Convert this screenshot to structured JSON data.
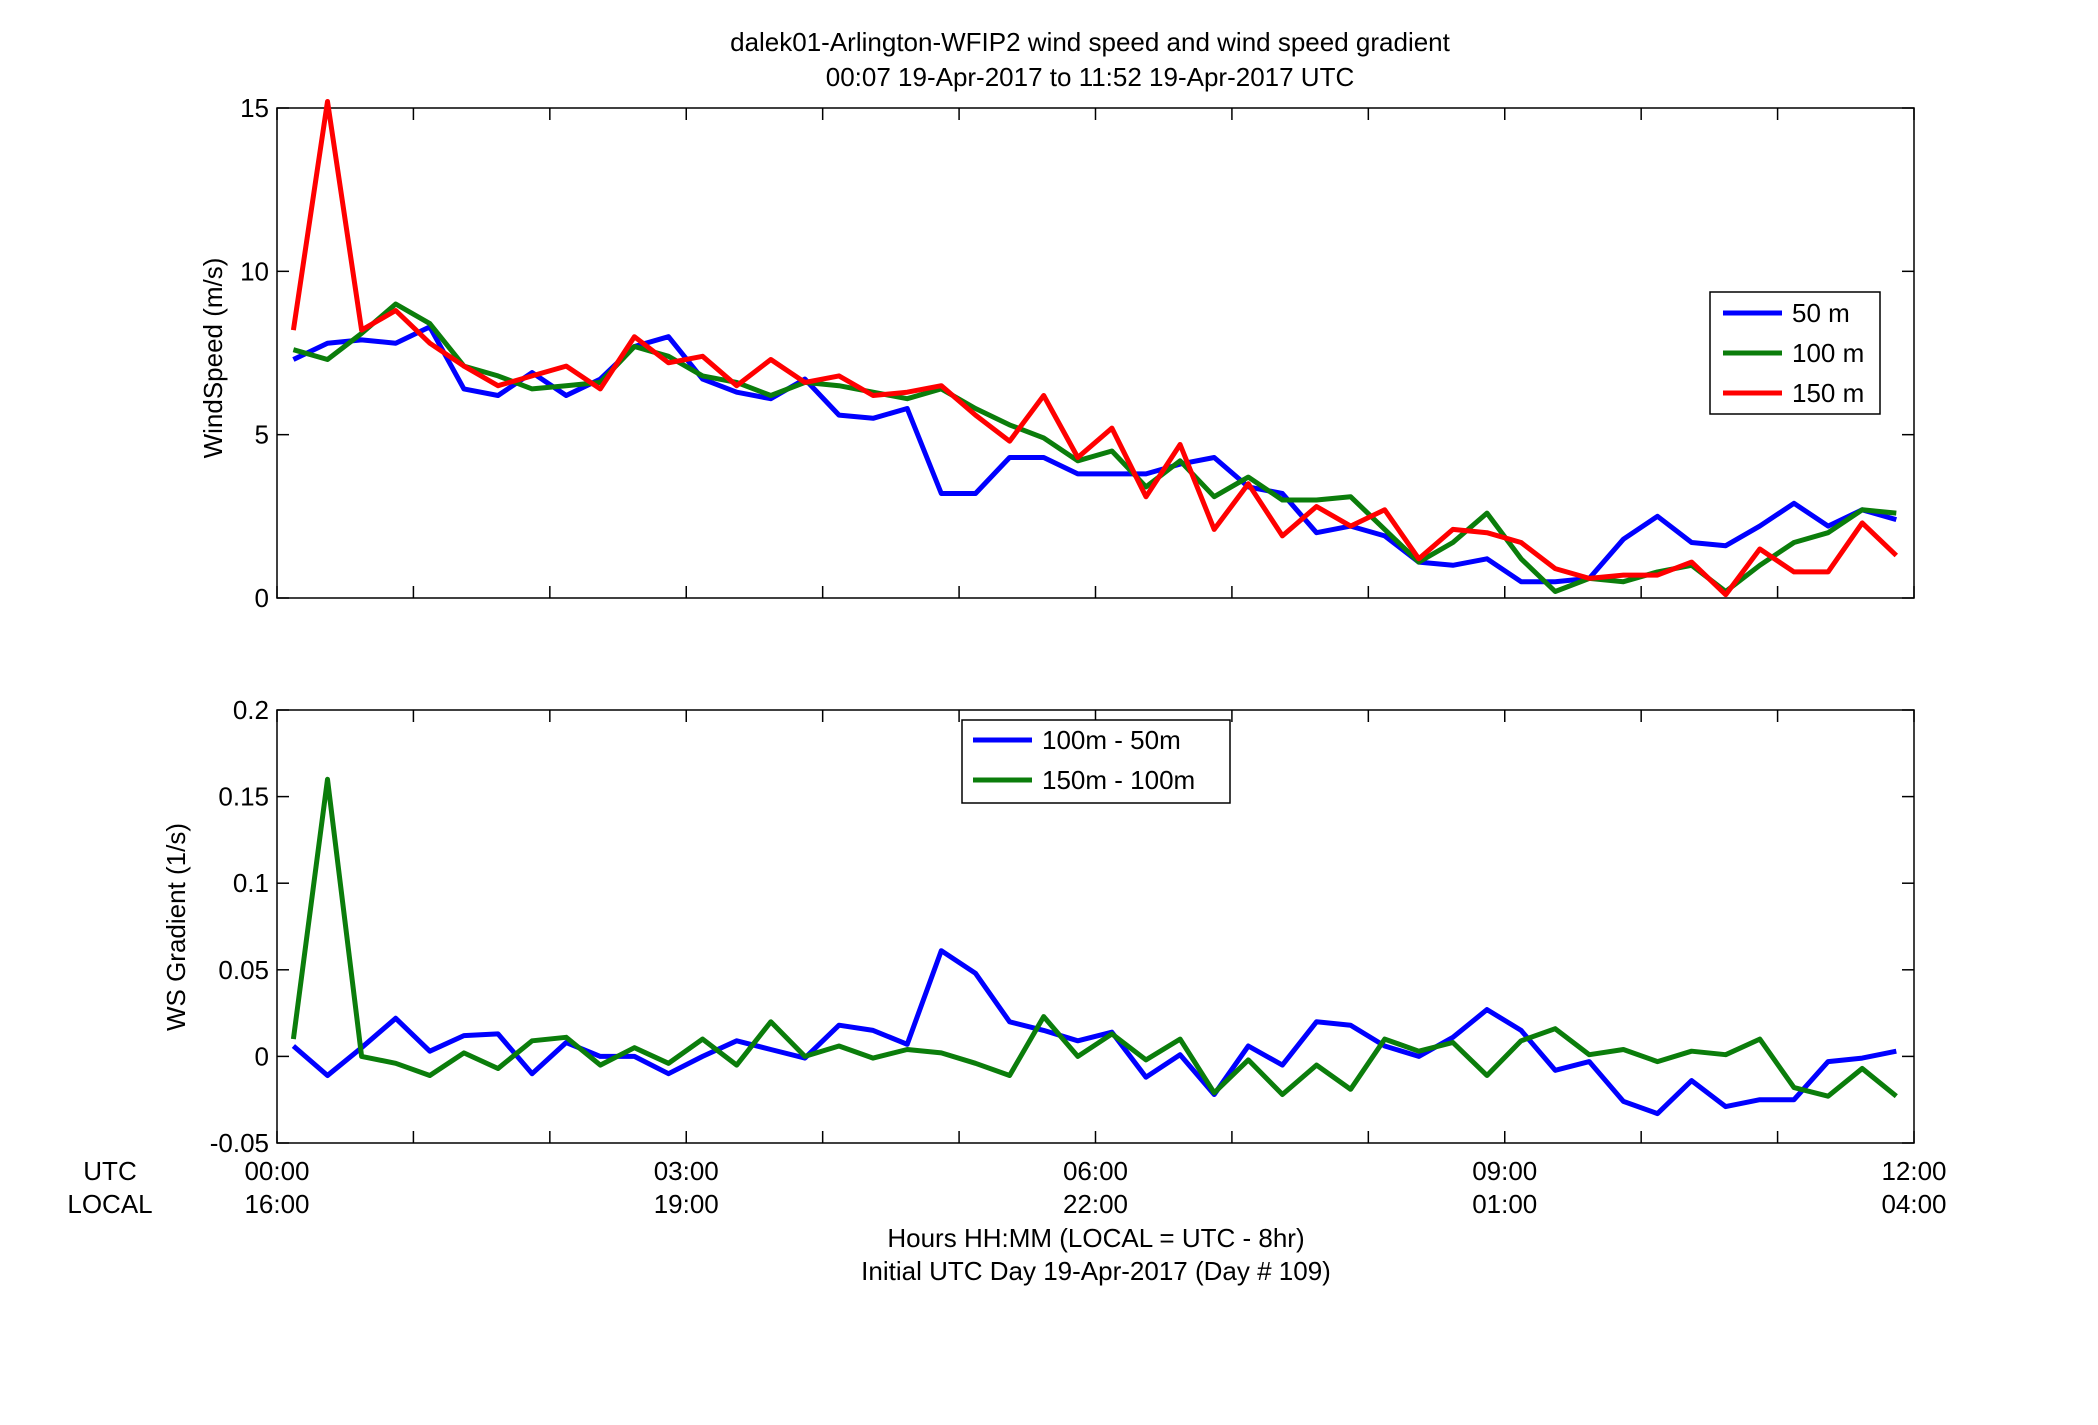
{
  "figure": {
    "title_line1": "dalek01-Arlington-WFIP2  wind speed and wind speed gradient",
    "title_line2": "00:07 19-Apr-2017 to 11:52 19-Apr-2017  UTC",
    "xlabel_line1": "Hours HH:MM  (LOCAL = UTC - 8hr)",
    "xlabel_line2": "Initial UTC Day 19-Apr-2017 (Day # 109)",
    "utc_row_label": "UTC",
    "local_row_label": "LOCAL",
    "x_ticks_utc": [
      "00:00",
      "03:00",
      "06:00",
      "09:00",
      "12:00"
    ],
    "x_ticks_local": [
      "16:00",
      "19:00",
      "22:00",
      "01:00",
      "04:00"
    ]
  },
  "chart_data": [
    {
      "type": "line",
      "ylabel": "WindSpeed (m/s)",
      "xlim": [
        0,
        12
      ],
      "ylim": [
        0,
        15
      ],
      "yticks": [
        0,
        5,
        10,
        15
      ],
      "ytick_labels": [
        "0",
        "5",
        "10",
        "15"
      ],
      "x_ticks": [
        0,
        1,
        2,
        3,
        4,
        5,
        6,
        7,
        8,
        9,
        10,
        11,
        12
      ],
      "legend_position": "right",
      "x": [
        0.12,
        0.37,
        0.62,
        0.87,
        1.12,
        1.37,
        1.62,
        1.87,
        2.12,
        2.37,
        2.62,
        2.87,
        3.12,
        3.37,
        3.62,
        3.87,
        4.12,
        4.37,
        4.62,
        4.87,
        5.12,
        5.37,
        5.62,
        5.87,
        6.12,
        6.37,
        6.62,
        6.87,
        7.12,
        7.37,
        7.62,
        7.87,
        8.12,
        8.37,
        8.62,
        8.87,
        9.12,
        9.37,
        9.62,
        9.87,
        10.12,
        10.37,
        10.62,
        10.87,
        11.12,
        11.37,
        11.62,
        11.87
      ],
      "series": [
        {
          "name": "50 m",
          "color": "#0000ff",
          "values": [
            7.3,
            7.8,
            7.9,
            7.8,
            8.3,
            6.4,
            6.2,
            6.9,
            6.2,
            6.7,
            7.7,
            8.0,
            6.7,
            6.3,
            6.1,
            6.7,
            5.6,
            5.5,
            5.8,
            3.2,
            3.2,
            4.3,
            4.3,
            3.8,
            3.8,
            3.8,
            4.1,
            4.3,
            3.4,
            3.2,
            2.0,
            2.2,
            1.9,
            1.1,
            1.0,
            1.2,
            0.5,
            0.5,
            0.6,
            1.8,
            2.5,
            1.7,
            1.6,
            2.2,
            2.9,
            2.2,
            2.7,
            2.4
          ]
        },
        {
          "name": "100 m",
          "color": "#0b7d0b",
          "values": [
            7.6,
            7.3,
            8.1,
            9.0,
            8.4,
            7.1,
            6.8,
            6.4,
            6.5,
            6.6,
            7.7,
            7.4,
            6.8,
            6.6,
            6.2,
            6.6,
            6.5,
            6.3,
            6.1,
            6.4,
            5.8,
            5.3,
            4.9,
            4.2,
            4.5,
            3.4,
            4.2,
            3.1,
            3.7,
            3.0,
            3.0,
            3.1,
            2.1,
            1.1,
            1.7,
            2.6,
            1.2,
            0.2,
            0.6,
            0.5,
            0.8,
            1.0,
            0.2,
            1.0,
            1.7,
            2.0,
            2.7,
            2.6
          ]
        },
        {
          "name": "150 m",
          "color": "#ff0000",
          "values": [
            8.2,
            15.2,
            8.2,
            8.8,
            7.8,
            7.1,
            6.5,
            6.8,
            7.1,
            6.4,
            8.0,
            7.2,
            7.4,
            6.5,
            7.3,
            6.6,
            6.8,
            6.2,
            6.3,
            6.5,
            5.6,
            4.8,
            6.2,
            4.3,
            5.2,
            3.1,
            4.7,
            2.1,
            3.5,
            1.9,
            2.8,
            2.2,
            2.7,
            1.2,
            2.1,
            2.0,
            1.7,
            0.9,
            0.6,
            0.7,
            0.7,
            1.1,
            0.1,
            1.5,
            0.8,
            0.8,
            2.3,
            1.3
          ]
        }
      ]
    },
    {
      "type": "line",
      "ylabel": "WS Gradient (1/s)",
      "xlim": [
        0,
        12
      ],
      "ylim": [
        -0.05,
        0.2
      ],
      "yticks": [
        -0.05,
        0,
        0.05,
        0.1,
        0.15,
        0.2
      ],
      "ytick_labels": [
        "-0.05",
        "0",
        "0.05",
        "0.1",
        "0.15",
        "0.2"
      ],
      "x_ticks": [
        0,
        1,
        2,
        3,
        4,
        5,
        6,
        7,
        8,
        9,
        10,
        11,
        12
      ],
      "legend_position": "top-center",
      "x": [
        0.12,
        0.37,
        0.62,
        0.87,
        1.12,
        1.37,
        1.62,
        1.87,
        2.12,
        2.37,
        2.62,
        2.87,
        3.12,
        3.37,
        3.62,
        3.87,
        4.12,
        4.37,
        4.62,
        4.87,
        5.12,
        5.37,
        5.62,
        5.87,
        6.12,
        6.37,
        6.62,
        6.87,
        7.12,
        7.37,
        7.62,
        7.87,
        8.12,
        8.37,
        8.62,
        8.87,
        9.12,
        9.37,
        9.62,
        9.87,
        10.12,
        10.37,
        10.62,
        10.87,
        11.12,
        11.37,
        11.62,
        11.87
      ],
      "series": [
        {
          "name": "100m - 50m",
          "color": "#0000ff",
          "values": [
            0.006,
            -0.011,
            0.005,
            0.022,
            0.003,
            0.012,
            0.013,
            -0.01,
            0.008,
            0.0,
            0.0,
            -0.01,
            0.0,
            0.009,
            0.004,
            -0.001,
            0.018,
            0.015,
            0.007,
            0.061,
            0.048,
            0.02,
            0.015,
            0.009,
            0.014,
            -0.012,
            0.001,
            -0.022,
            0.006,
            -0.005,
            0.02,
            0.018,
            0.006,
            0.0,
            0.011,
            0.027,
            0.015,
            -0.008,
            -0.003,
            -0.026,
            -0.033,
            -0.014,
            -0.029,
            -0.025,
            -0.025,
            -0.003,
            -0.001,
            0.003
          ]
        },
        {
          "name": "150m - 100m",
          "color": "#0b7d0b",
          "values": [
            0.01,
            0.16,
            0.0,
            -0.004,
            -0.011,
            0.002,
            -0.007,
            0.009,
            0.011,
            -0.005,
            0.005,
            -0.004,
            0.01,
            -0.005,
            0.02,
            0.0,
            0.006,
            -0.001,
            0.004,
            0.002,
            -0.004,
            -0.011,
            0.023,
            0.0,
            0.013,
            -0.002,
            0.01,
            -0.021,
            -0.002,
            -0.022,
            -0.005,
            -0.019,
            0.01,
            0.003,
            0.008,
            -0.011,
            0.009,
            0.016,
            0.001,
            0.004,
            -0.003,
            0.003,
            0.001,
            0.01,
            -0.018,
            -0.023,
            -0.007,
            -0.023
          ]
        }
      ]
    }
  ]
}
